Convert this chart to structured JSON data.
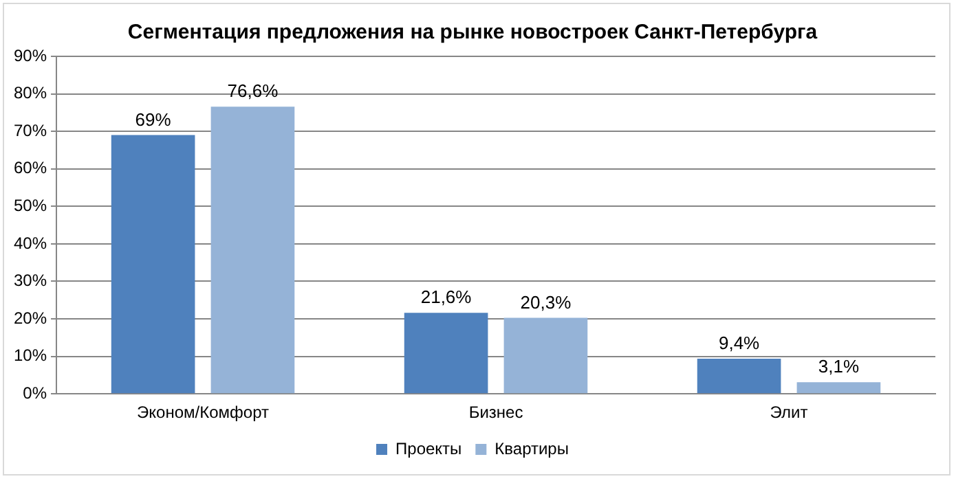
{
  "chart_data": {
    "type": "bar",
    "title": "Сегментация предложения на рынке новостроек Санкт-Петербурга",
    "categories": [
      "Эконом/Комфорт",
      "Бизнес",
      "Элит"
    ],
    "series": [
      {
        "name": "Проекты",
        "color": "#4f81bd",
        "values": [
          69,
          21.6,
          9.4
        ],
        "value_labels": [
          "69%",
          "21,6%",
          "9,4%"
        ]
      },
      {
        "name": "Квартиры",
        "color": "#95b3d7",
        "values": [
          76.6,
          20.3,
          3.1
        ],
        "value_labels": [
          "76,6%",
          "20,3%",
          "3,1%"
        ]
      }
    ],
    "ylim": [
      0,
      90
    ],
    "yticks": [
      {
        "value": 0,
        "label": "0%"
      },
      {
        "value": 10,
        "label": "10%"
      },
      {
        "value": 20,
        "label": "20%"
      },
      {
        "value": 30,
        "label": "30%"
      },
      {
        "value": 40,
        "label": "40%"
      },
      {
        "value": 50,
        "label": "50%"
      },
      {
        "value": 60,
        "label": "60%"
      },
      {
        "value": 70,
        "label": "70%"
      },
      {
        "value": 80,
        "label": "80%"
      },
      {
        "value": 90,
        "label": "90%"
      }
    ],
    "grid": "y",
    "legend": "bottom"
  }
}
